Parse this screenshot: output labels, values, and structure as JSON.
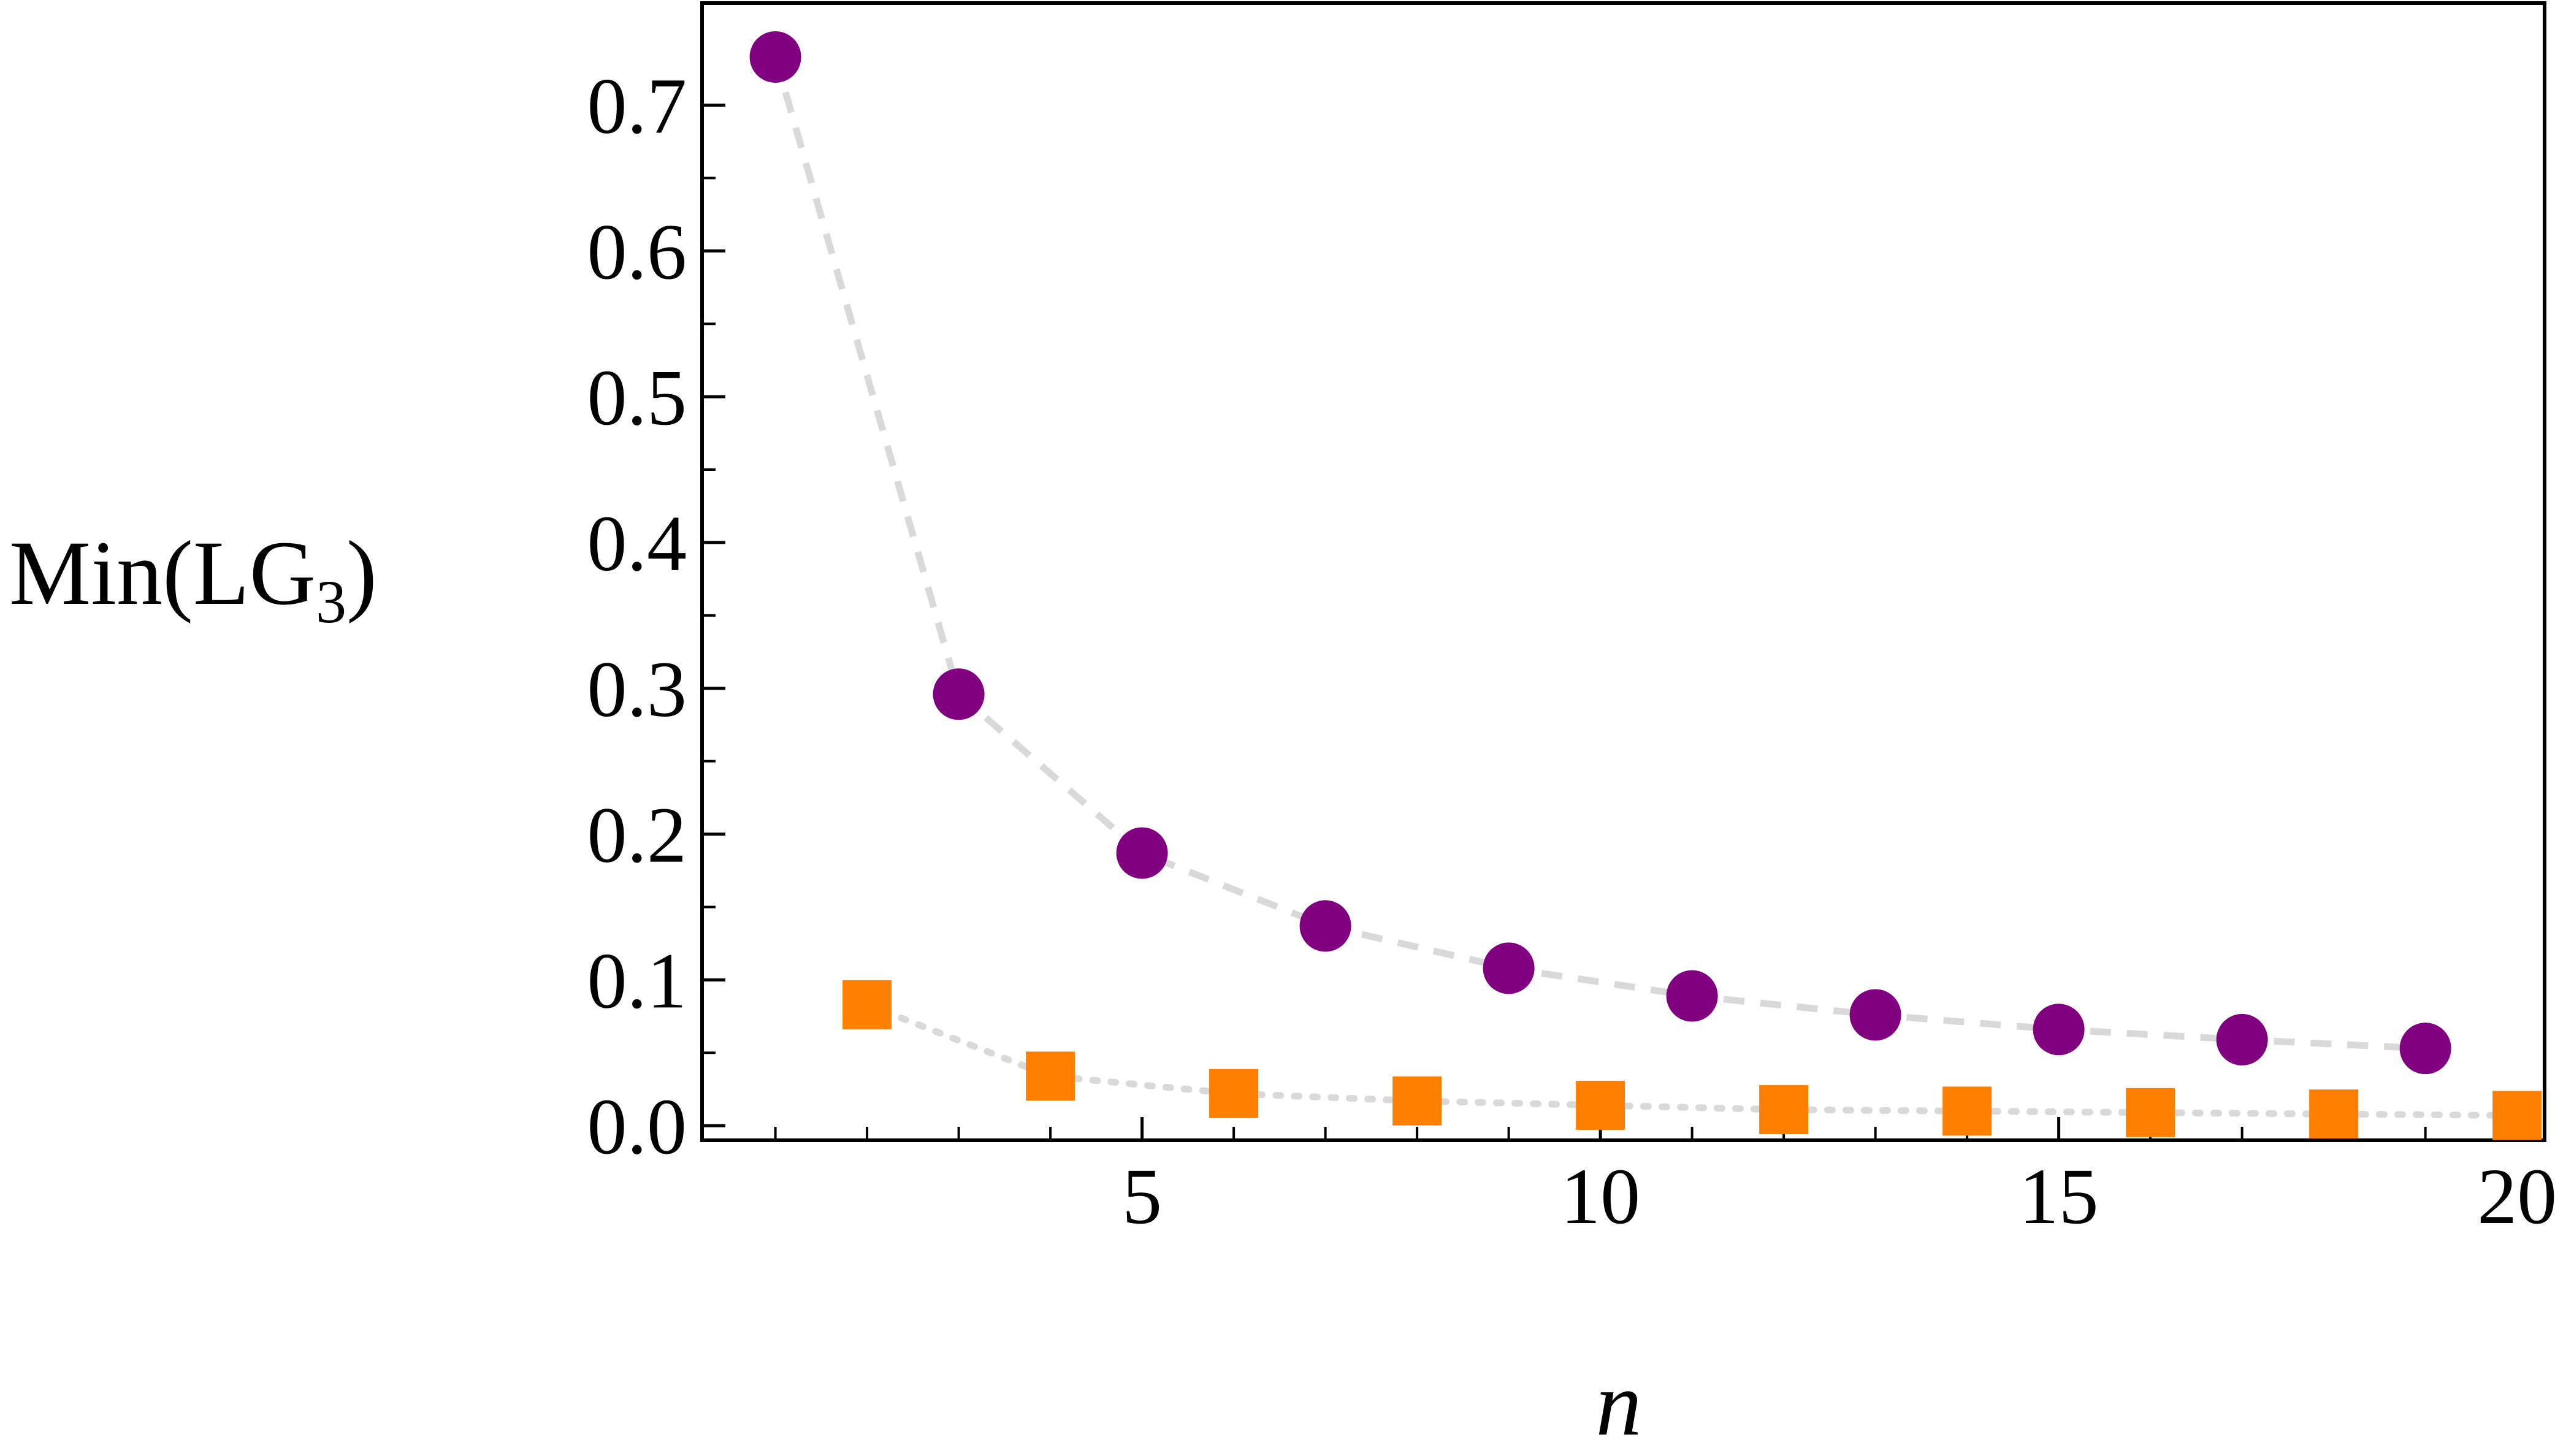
{
  "chart_data": {
    "type": "scatter",
    "xlabel": "n",
    "ylabel": {
      "prefix": "Min(LG",
      "subscript": "3",
      "suffix": ")"
    },
    "xlim": [
      0.2,
      20.3
    ],
    "ylim": [
      -0.01,
      0.77
    ],
    "x_ticks": [
      5,
      10,
      15,
      20
    ],
    "y_ticks": [
      0.0,
      0.1,
      0.2,
      0.3,
      0.4,
      0.5,
      0.6,
      0.7
    ],
    "y_tick_labels": [
      "0.0",
      "0.1",
      "0.2",
      "0.3",
      "0.4",
      "0.5",
      "0.6",
      "0.7"
    ],
    "x_minor_ticks": [
      1,
      2,
      3,
      4,
      6,
      7,
      8,
      9,
      11,
      12,
      13,
      14,
      16,
      17,
      18,
      19
    ],
    "grid": false,
    "series": [
      {
        "marker": "circle",
        "color": "#800080",
        "line_color": "#d9d9d9",
        "line_style": "dashed",
        "x": [
          1,
          3,
          5,
          7,
          9,
          11,
          13,
          15,
          17,
          19
        ],
        "y": [
          0.733,
          0.296,
          0.187,
          0.137,
          0.108,
          0.089,
          0.076,
          0.066,
          0.059,
          0.053
        ]
      },
      {
        "marker": "square",
        "color": "#ff8000",
        "line_color": "#d9d9d9",
        "line_style": "dotted",
        "x": [
          2,
          4,
          6,
          8,
          10,
          12,
          14,
          16,
          18,
          20
        ],
        "y": [
          0.083,
          0.034,
          0.022,
          0.017,
          0.014,
          0.011,
          0.01,
          0.009,
          0.008,
          0.007
        ]
      }
    ]
  }
}
